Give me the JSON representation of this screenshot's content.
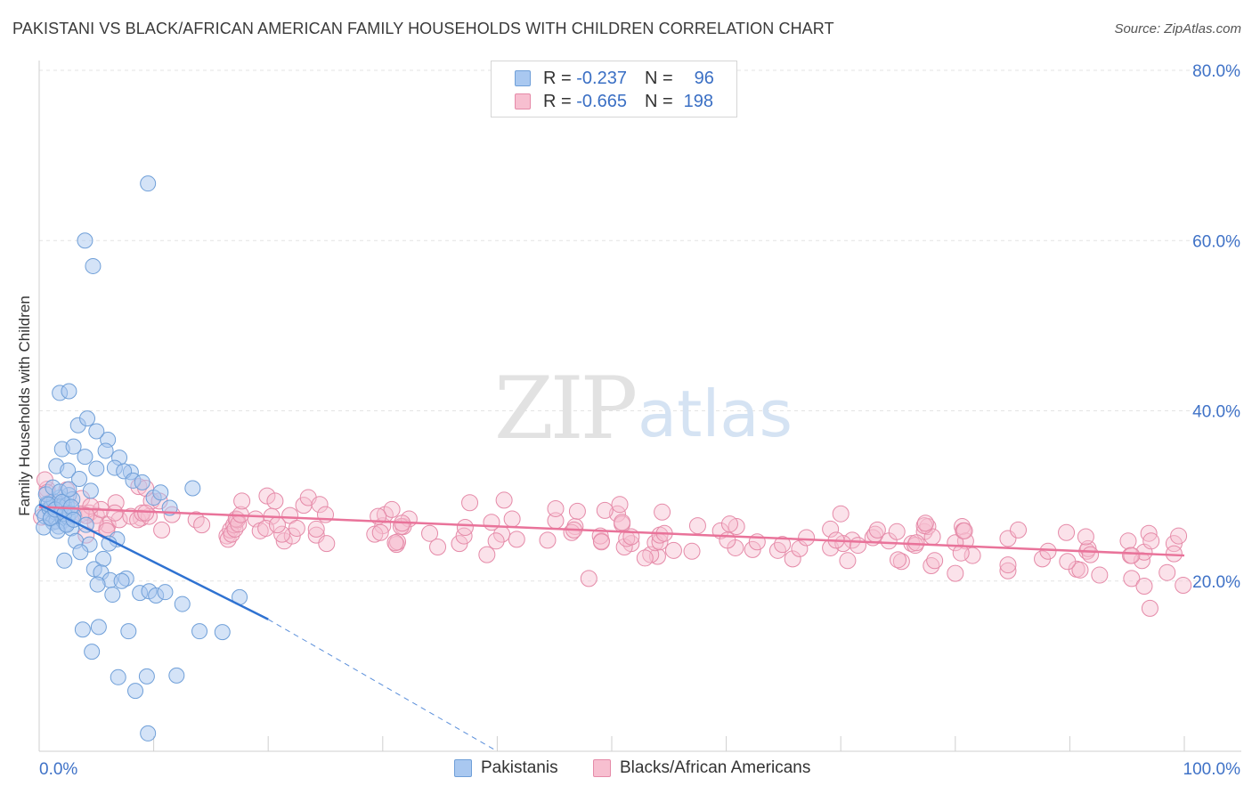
{
  "header": {
    "title": "PAKISTANI VS BLACK/AFRICAN AMERICAN FAMILY HOUSEHOLDS WITH CHILDREN CORRELATION CHART",
    "source": "Source: ZipAtlas.com"
  },
  "watermark": {
    "zip": "ZIP",
    "atlas": "atlas"
  },
  "legend": {
    "rows": [
      {
        "r_label": "R =",
        "r_value": "-0.237",
        "n_label": "N =",
        "n_value": "96",
        "color": "#a9c8f0",
        "border": "#6f9fd8"
      },
      {
        "r_label": "R =",
        "r_value": "-0.665",
        "n_label": "N =",
        "n_value": "198",
        "color": "#f7bfd0",
        "border": "#e58aa8"
      }
    ]
  },
  "colors": {
    "blue_fill": "#a9c8f0",
    "blue_stroke": "#6f9fd8",
    "blue_line": "#2f72d1",
    "pink_fill": "#f7bfd0",
    "pink_stroke": "#e58aa8",
    "pink_line": "#e9739a",
    "tick_text": "#3f72c7"
  },
  "chart_data": {
    "type": "scatter",
    "title": "PAKISTANI VS BLACK/AFRICAN AMERICAN FAMILY HOUSEHOLDS WITH CHILDREN CORRELATION CHART",
    "xlabel": "",
    "ylabel": "Family Households with Children",
    "xlim": [
      0,
      100
    ],
    "ylim": [
      0,
      80
    ],
    "x_tick_labels": [
      "0.0%",
      "100.0%"
    ],
    "y_ticks": [
      20,
      40,
      60,
      80
    ],
    "y_tick_labels": [
      "20.0%",
      "40.0%",
      "60.0%",
      "80.0%"
    ],
    "grid": true,
    "legend_position": "top-center",
    "series": [
      {
        "name": "Pakistanis",
        "color": "#a9c8f0",
        "x": [
          0.3,
          0.5,
          0.7,
          0.9,
          1.0,
          1.1,
          1.2,
          1.3,
          1.4,
          1.5,
          1.6,
          1.7,
          1.8,
          1.9,
          2.0,
          2.1,
          2.2,
          2.3,
          2.4,
          2.5,
          2.6,
          2.7,
          2.8,
          2.9,
          3.0,
          0.4,
          0.6,
          0.8,
          1.0,
          1.2,
          1.4,
          1.6,
          1.8,
          2.0,
          2.2,
          2.4,
          2.6,
          2.8,
          3.0,
          1.5,
          2.5,
          3.5,
          4.5,
          2.0,
          3.0,
          4.0,
          5.0,
          6.0,
          7.0,
          8.0,
          1.8,
          2.6,
          3.4,
          4.2,
          5.0,
          5.8,
          6.6,
          7.4,
          8.2,
          9.0,
          10.0,
          3.2,
          4.4,
          5.6,
          6.8,
          7.6,
          2.2,
          3.6,
          4.8,
          5.4,
          6.2,
          7.2,
          8.8,
          9.6,
          10.2,
          12.5,
          17.5,
          3.8,
          5.2,
          6.4,
          7.8,
          11.0,
          14.0,
          16.0,
          4.6,
          9.4,
          12.0,
          5.1,
          6.9,
          8.4,
          9.5,
          10.6,
          11.4,
          13.4,
          4.1,
          6.1
        ],
        "y": [
          28.2,
          27.6,
          29.1,
          28.5,
          27.3,
          28.8,
          26.9,
          29.4,
          28.1,
          27.0,
          28.6,
          26.4,
          29.8,
          27.8,
          28.3,
          27.1,
          29.2,
          26.7,
          28.9,
          27.5,
          30.1,
          28.0,
          26.2,
          29.6,
          27.7,
          26.3,
          30.2,
          29.0,
          27.4,
          31.0,
          28.4,
          25.9,
          30.5,
          29.3,
          27.9,
          26.6,
          30.8,
          28.7,
          27.2,
          33.5,
          33.0,
          32.0,
          30.6,
          35.5,
          35.8,
          34.6,
          33.2,
          36.6,
          34.5,
          32.8,
          42.1,
          42.3,
          38.3,
          39.1,
          37.6,
          35.3,
          33.3,
          32.9,
          31.8,
          31.6,
          29.8,
          24.7,
          24.3,
          22.6,
          24.9,
          20.3,
          22.4,
          23.4,
          21.4,
          21.0,
          20.1,
          20.0,
          18.6,
          18.8,
          18.3,
          17.3,
          18.1,
          14.3,
          14.6,
          18.4,
          14.1,
          18.7,
          14.1,
          14.0,
          11.7,
          8.8,
          8.9,
          19.6,
          8.7,
          7.1,
          2.1,
          30.4,
          28.6,
          30.9,
          26.6,
          24.4
        ],
        "outliers_x": [
          9.5,
          4.0,
          4.7
        ],
        "outliers_y": [
          66.7,
          60.0,
          57.0
        ]
      },
      {
        "name": "Blacks/African Americans",
        "color": "#f7bfd0",
        "x": [],
        "y": []
      }
    ],
    "trendlines": [
      {
        "series": "Pakistanis",
        "solid_from": [
          0,
          29.0
        ],
        "solid_to": [
          20,
          15.5
        ],
        "dashed_to": [
          40,
          0
        ]
      },
      {
        "series": "Blacks/African Americans",
        "from": [
          0,
          28.7
        ],
        "to": [
          100,
          23.0
        ]
      }
    ]
  },
  "bottom_legend": {
    "items": [
      {
        "label": "Pakistanis"
      },
      {
        "label": "Blacks/African Americans"
      }
    ]
  }
}
